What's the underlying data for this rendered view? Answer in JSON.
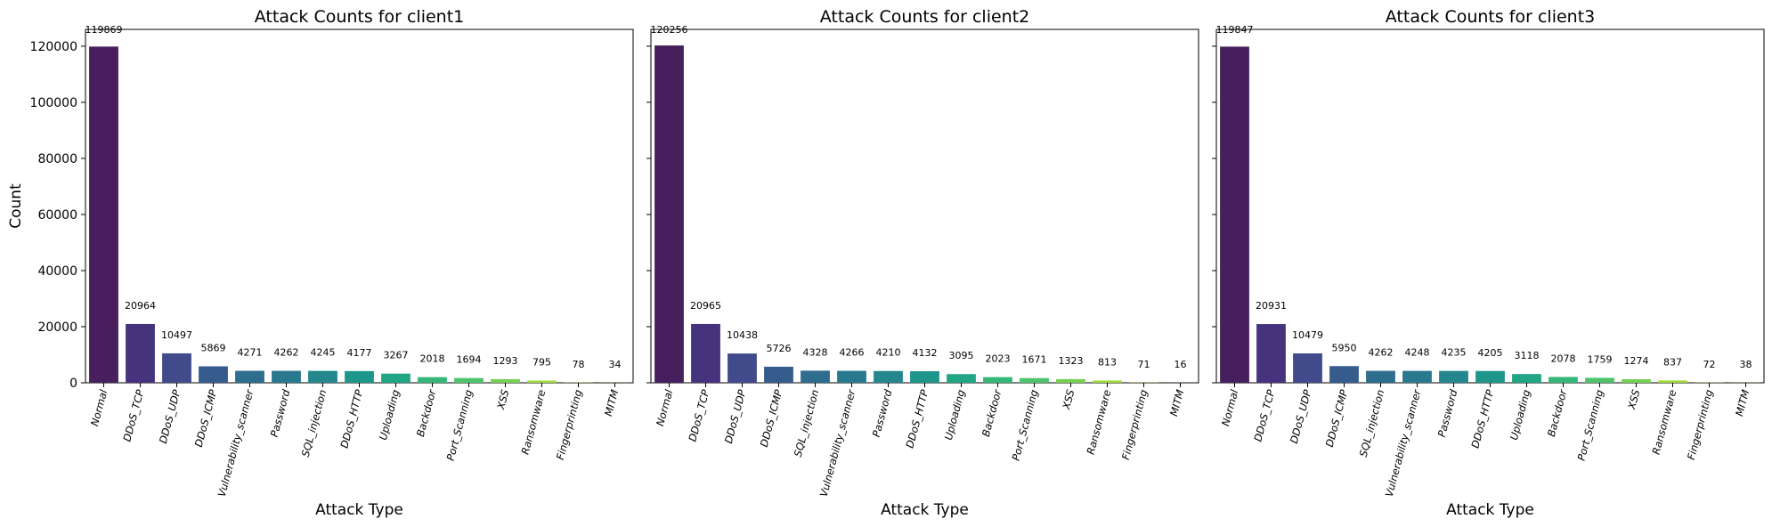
{
  "chart_data": [
    {
      "type": "bar",
      "title": "Attack Counts for client1",
      "xlabel": "Attack Type",
      "ylabel": "Count",
      "ylim": [
        0,
        126000
      ],
      "yticks": [
        "0",
        "20000",
        "40000",
        "60000",
        "80000",
        "100000",
        "120000"
      ],
      "categories": [
        "Normal",
        "DDoS_TCP",
        "DDoS_UDP",
        "DDoS_ICMP",
        "Vulnerability_scanner",
        "Password",
        "SQL_injection",
        "DDoS_HTTP",
        "Uploading",
        "Backdoor",
        "Port_Scanning",
        "XSS",
        "Ransomware",
        "Fingerprinting",
        "MITM"
      ],
      "values": [
        119869,
        20964,
        10497,
        5869,
        4271,
        4262,
        4245,
        4177,
        3267,
        2018,
        1694,
        1293,
        795,
        78,
        34
      ],
      "labels": [
        "119869",
        "20964",
        "10497",
        "5869",
        "4271",
        "4262",
        "4245",
        "4177",
        "3267",
        "2018",
        "1694",
        "1293",
        "795",
        "78",
        "34"
      ],
      "grid": false,
      "legend": "none"
    },
    {
      "type": "bar",
      "title": "Attack Counts for client2",
      "xlabel": "Attack Type",
      "ylabel": "",
      "ylim": [
        0,
        126000
      ],
      "yticks": [],
      "categories": [
        "Normal",
        "DDoS_TCP",
        "DDoS_UDP",
        "DDoS_ICMP",
        "SQL_injection",
        "Vulnerability_scanner",
        "Password",
        "DDoS_HTTP",
        "Uploading",
        "Backdoor",
        "Port_Scanning",
        "XSS",
        "Ransomware",
        "Fingerprinting",
        "MITM"
      ],
      "values": [
        120256,
        20965,
        10438,
        5726,
        4328,
        4266,
        4210,
        4132,
        3095,
        2023,
        1671,
        1323,
        813,
        71,
        16
      ],
      "labels": [
        "120256",
        "20965",
        "10438",
        "5726",
        "4328",
        "4266",
        "4210",
        "4132",
        "3095",
        "2023",
        "1671",
        "1323",
        "813",
        "71",
        "16"
      ],
      "grid": false,
      "legend": "none"
    },
    {
      "type": "bar",
      "title": "Attack Counts for client3",
      "xlabel": "Attack Type",
      "ylabel": "",
      "ylim": [
        0,
        126000
      ],
      "yticks": [],
      "categories": [
        "Normal",
        "DDoS_TCP",
        "DDoS_UDP",
        "DDoS_ICMP",
        "SQL_injection",
        "Vulnerability_scanner",
        "Password",
        "DDoS_HTTP",
        "Uploading",
        "Backdoor",
        "Port_Scanning",
        "XSS",
        "Ransomware",
        "Fingerprinting",
        "MITM"
      ],
      "values": [
        119847,
        20931,
        10479,
        5950,
        4262,
        4248,
        4235,
        4205,
        3118,
        2078,
        1759,
        1274,
        837,
        72,
        38
      ],
      "labels": [
        "119847",
        "20931",
        "10479",
        "5950",
        "4262",
        "4248",
        "4235",
        "4205",
        "3118",
        "2078",
        "1759",
        "1274",
        "837",
        "72",
        "38"
      ],
      "grid": false,
      "legend": "none"
    }
  ],
  "colors": [
    "#471f5d",
    "#46337e",
    "#414a8a",
    "#365c8d",
    "#2f6d8e",
    "#29798e",
    "#24878e",
    "#1f968b",
    "#22a584",
    "#35b779",
    "#4ec36b",
    "#75d054",
    "#9fda3a",
    "#cde11d",
    "#e9e51a"
  ]
}
